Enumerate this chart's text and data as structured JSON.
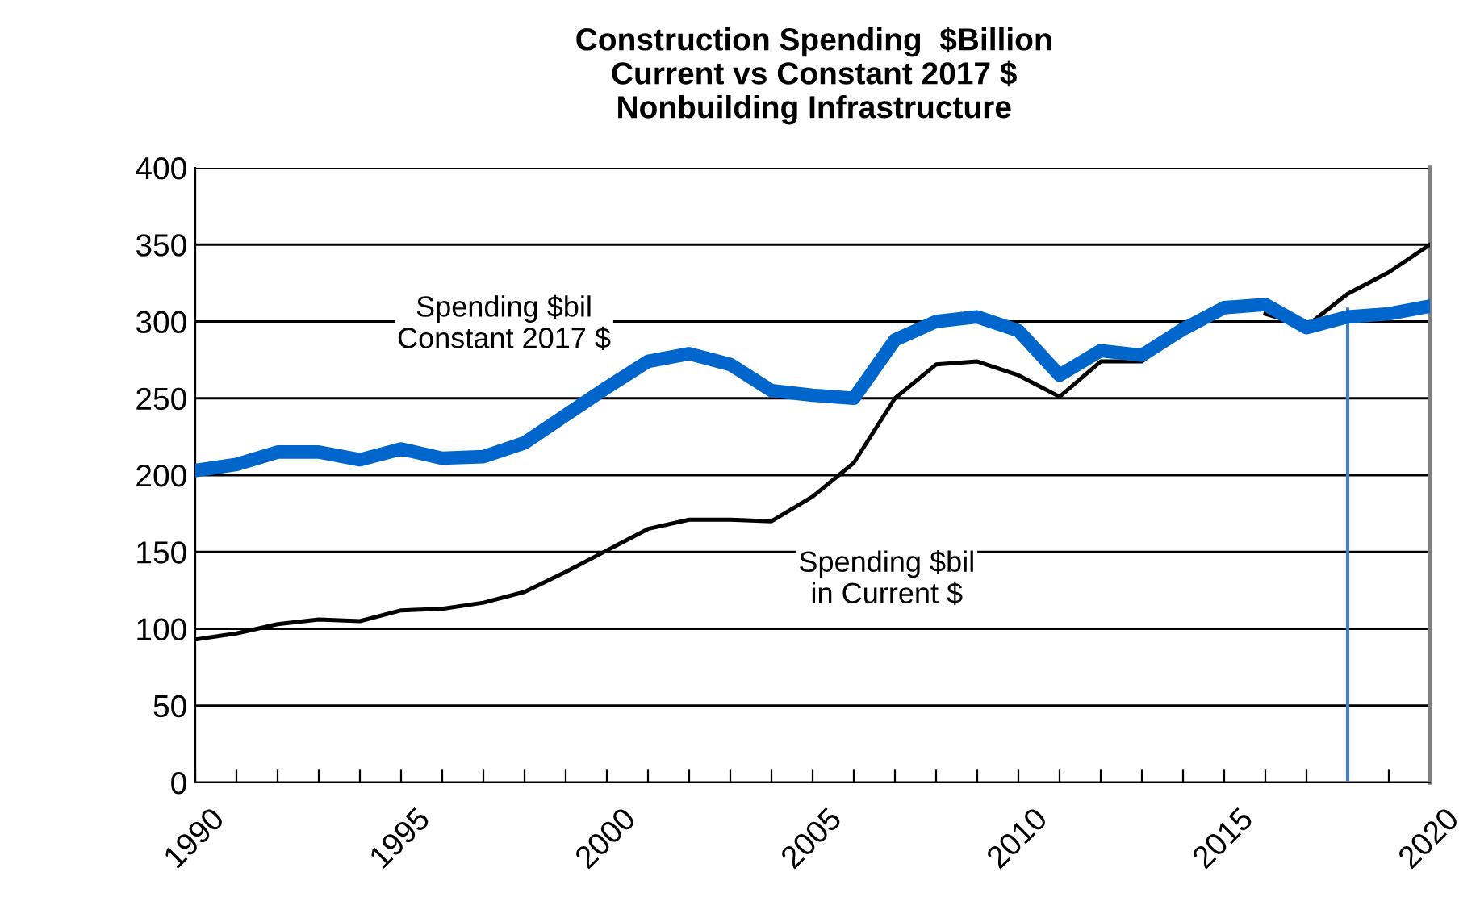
{
  "chart_data": {
    "type": "line",
    "title": "Construction Spending  $Billion\nCurrent vs Constant 2017 $\nNonbuilding Infrastructure",
    "x": [
      1990,
      1991,
      1992,
      1993,
      1994,
      1995,
      1996,
      1997,
      1998,
      1999,
      2000,
      2001,
      2002,
      2003,
      2004,
      2005,
      2006,
      2007,
      2008,
      2009,
      2010,
      2011,
      2012,
      2013,
      2014,
      2015,
      2016,
      2017,
      2018,
      2019,
      2020
    ],
    "series": [
      {
        "name": "Spending $bil\nin Current $",
        "color": "#000000",
        "values": [
          93,
          97,
          103,
          106,
          105,
          112,
          113,
          117,
          124,
          137,
          151,
          165,
          171,
          171,
          170,
          186,
          208,
          250,
          272,
          274,
          265,
          251,
          274,
          274,
          295,
          null,
          305,
          297,
          318,
          332,
          350
        ]
      },
      {
        "name": "Spending $bil\nConstant 2017 $",
        "color": "#0066cc",
        "values": [
          203,
          207,
          215,
          215,
          210,
          217,
          211,
          212,
          221,
          239,
          257,
          274,
          279,
          272,
          255,
          252,
          250,
          288,
          300,
          303,
          294,
          265,
          281,
          278,
          295,
          309,
          311,
          296,
          303,
          305,
          310
        ]
      }
    ],
    "xlim": [
      1990,
      2020
    ],
    "xticks": [
      1990,
      {
        "value": 1991,
        "label": null
      },
      {
        "value": 1992,
        "label": null
      },
      {
        "value": 1993,
        "label": null
      },
      {
        "value": 1994,
        "label": null
      },
      1995,
      {
        "value": 1996,
        "label": null
      },
      {
        "value": 1997,
        "label": null
      },
      {
        "value": 1998,
        "label": null
      },
      {
        "value": 1999,
        "label": null
      },
      2000,
      {
        "value": 2001,
        "label": null
      },
      {
        "value": 2002,
        "label": null
      },
      {
        "value": 2003,
        "label": null
      },
      {
        "value": 2004,
        "label": null
      },
      2005,
      {
        "value": 2006,
        "label": null
      },
      {
        "value": 2007,
        "label": null
      },
      {
        "value": 2008,
        "label": null
      },
      {
        "value": 2009,
        "label": null
      },
      2010,
      {
        "value": 2011,
        "label": null
      },
      {
        "value": 2012,
        "label": null
      },
      {
        "value": 2013,
        "label": null
      },
      {
        "value": 2014,
        "label": null
      },
      2015,
      {
        "value": 2016,
        "label": null
      },
      {
        "value": 2017,
        "label": null
      },
      {
        "value": 2018,
        "label": null
      },
      {
        "value": 2019,
        "label": null
      },
      2020
    ],
    "ylim": [
      0,
      400
    ],
    "yticks": [
      0,
      50,
      100,
      150,
      200,
      250,
      300,
      350,
      400
    ],
    "grid": "y",
    "legend": false,
    "ref_lines": [
      {
        "axis": "x",
        "value": 2018,
        "color": "#4a7ebb"
      }
    ]
  }
}
